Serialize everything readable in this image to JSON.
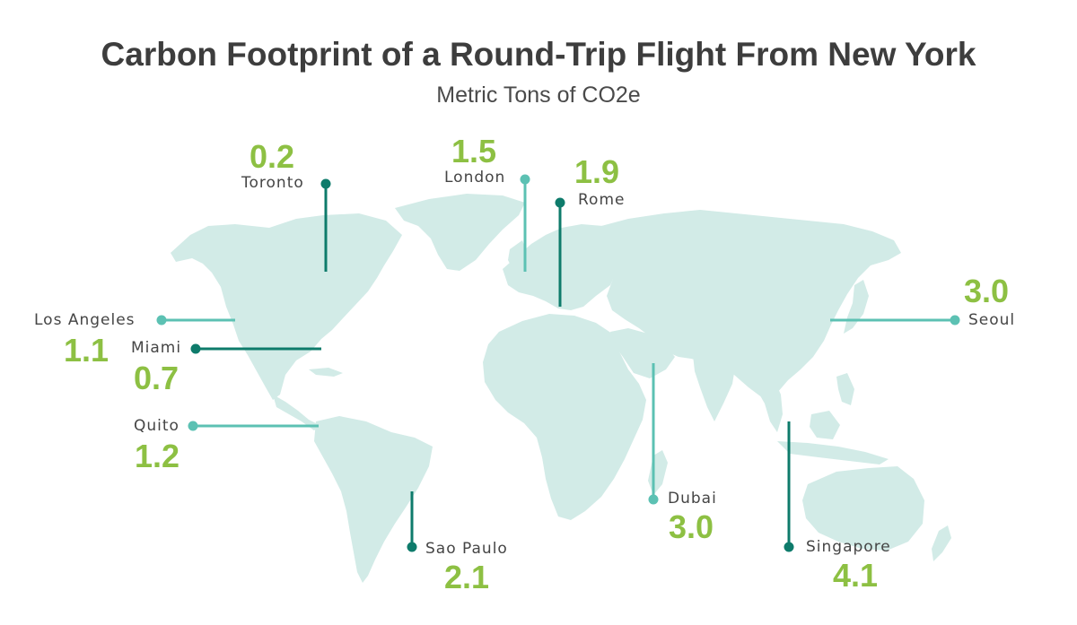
{
  "title": "Carbon Footprint of a Round-Trip Flight From New York",
  "subtitle": "Metric Tons of CO2e",
  "colors": {
    "value": "#8dc043",
    "land": "#d2ebe7",
    "dark_line": "#0e7b6b",
    "light_line": "#5cc1b3",
    "text": "#3d3d3d"
  },
  "cities": [
    {
      "id": "toronto",
      "name": "Toronto",
      "value": "0.2",
      "shade": "dark"
    },
    {
      "id": "london",
      "name": "London",
      "value": "1.5",
      "shade": "light"
    },
    {
      "id": "rome",
      "name": "Rome",
      "value": "1.9",
      "shade": "dark"
    },
    {
      "id": "los-angeles",
      "name": "Los Angeles",
      "value": "1.1",
      "shade": "light"
    },
    {
      "id": "miami",
      "name": "Miami",
      "value": "0.7",
      "shade": "dark"
    },
    {
      "id": "quito",
      "name": "Quito",
      "value": "1.2",
      "shade": "light"
    },
    {
      "id": "seoul",
      "name": "Seoul",
      "value": "3.0",
      "shade": "light"
    },
    {
      "id": "dubai",
      "name": "Dubai",
      "value": "3.0",
      "shade": "light"
    },
    {
      "id": "sao-paulo",
      "name": "Sao Paulo",
      "value": "2.1",
      "shade": "dark"
    },
    {
      "id": "singapore",
      "name": "Singapore",
      "value": "4.1",
      "shade": "dark"
    }
  ]
}
